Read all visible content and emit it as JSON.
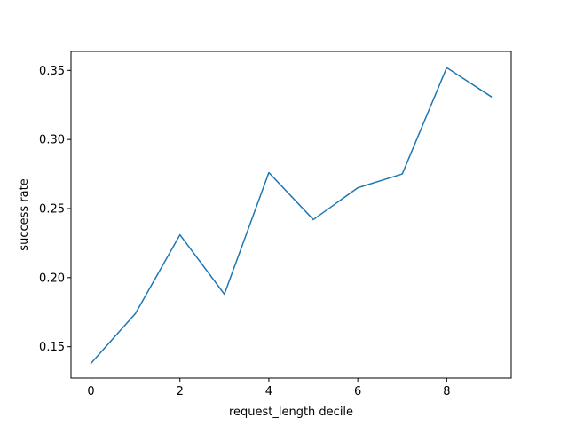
{
  "chart_data": {
    "type": "line",
    "title": "",
    "xlabel": "request_length decile",
    "ylabel": "success rate",
    "xlim": [
      -0.45,
      9.45
    ],
    "ylim": [
      0.1273,
      0.3637
    ],
    "grid": false,
    "legend": "none",
    "x_ticks": [
      0,
      2,
      4,
      6,
      8
    ],
    "x_tick_labels": [
      "0",
      "2",
      "4",
      "6",
      "8"
    ],
    "y_ticks": [
      0.15,
      0.2,
      0.25,
      0.3,
      0.35
    ],
    "y_tick_labels": [
      "0.15",
      "0.20",
      "0.25",
      "0.30",
      "0.35"
    ],
    "series": [
      {
        "color": "#1f77b4",
        "x": [
          0,
          1,
          2,
          3,
          4,
          5,
          6,
          7,
          8,
          9
        ],
        "values": [
          0.138,
          0.174,
          0.231,
          0.188,
          0.276,
          0.242,
          0.265,
          0.275,
          0.352,
          0.331
        ]
      }
    ]
  }
}
